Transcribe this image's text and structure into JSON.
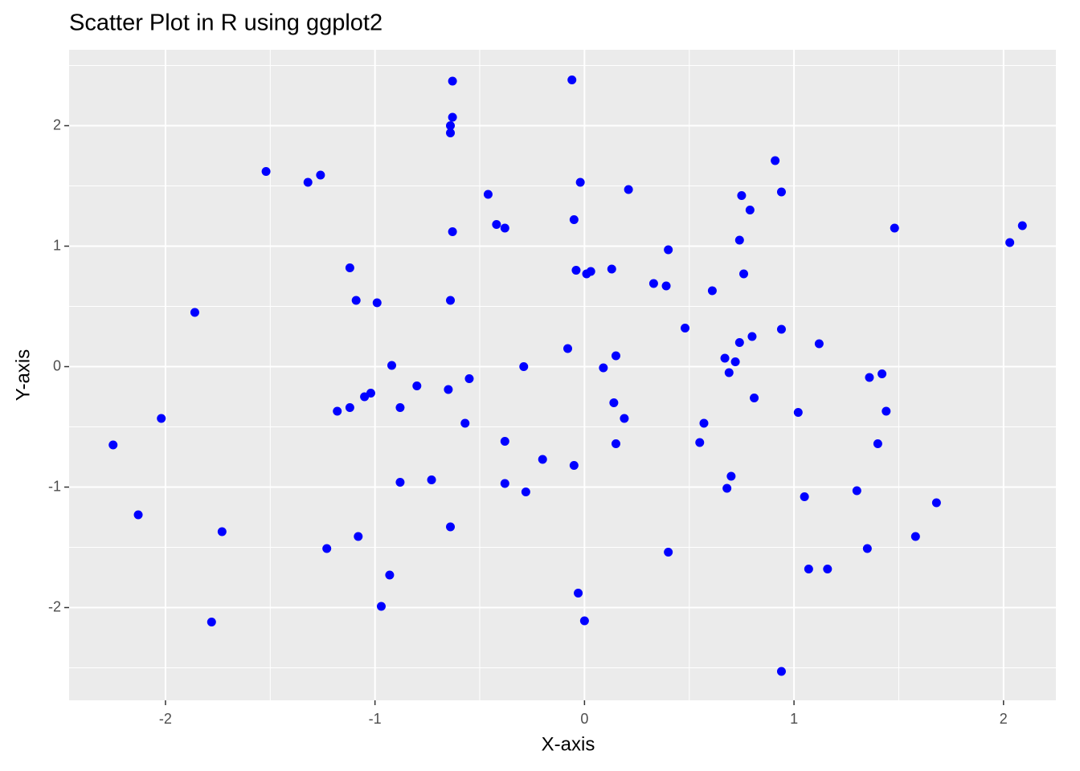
{
  "chart_data": {
    "type": "scatter",
    "title": "Scatter Plot in R using ggplot2",
    "x_label": "X-axis",
    "y_label": "Y-axis",
    "color": "#0000ff",
    "grid": true,
    "xlim": [
      -2.46,
      2.25
    ],
    "ylim": [
      -2.77,
      2.63
    ],
    "xticks": [
      -2,
      -1,
      0,
      1,
      2
    ],
    "yticks": [
      -2,
      -1,
      0,
      1,
      2
    ],
    "x": [
      -2.25,
      -2.13,
      -2.02,
      -1.86,
      -1.78,
      -1.73,
      -1.52,
      -1.32,
      -1.26,
      -1.23,
      -1.18,
      -1.12,
      -1.12,
      -1.09,
      -1.08,
      -1.05,
      -1.02,
      -0.99,
      -0.97,
      -0.93,
      -0.92,
      -0.88,
      -0.88,
      -0.8,
      -0.73,
      -0.65,
      -0.64,
      -0.64,
      -0.64,
      -0.64,
      -0.63,
      -0.63,
      -0.63,
      -0.57,
      -0.55,
      -0.46,
      -0.42,
      -0.38,
      -0.38,
      -0.38,
      -0.29,
      -0.28,
      -0.2,
      -0.08,
      -0.06,
      -0.05,
      -0.05,
      -0.04,
      -0.03,
      -0.02,
      0.0,
      0.01,
      0.03,
      0.09,
      0.13,
      0.14,
      0.15,
      0.15,
      0.19,
      0.21,
      0.33,
      0.39,
      0.4,
      0.4,
      0.48,
      0.55,
      0.57,
      0.61,
      0.67,
      0.68,
      0.69,
      0.7,
      0.72,
      0.74,
      0.74,
      0.75,
      0.76,
      0.79,
      0.8,
      0.81,
      0.91,
      0.94,
      0.94,
      0.94,
      1.02,
      1.05,
      1.07,
      1.12,
      1.16,
      1.3,
      1.35,
      1.36,
      1.4,
      1.42,
      1.44,
      1.48,
      1.58,
      1.68,
      2.03,
      2.09
    ],
    "y": [
      -0.65,
      -1.23,
      -0.43,
      0.45,
      -2.12,
      -1.37,
      1.62,
      1.53,
      1.59,
      -1.51,
      -0.37,
      0.82,
      -0.34,
      0.55,
      -1.41,
      -0.25,
      -0.22,
      0.53,
      -1.99,
      -1.73,
      0.01,
      -0.34,
      -0.96,
      -0.16,
      -0.94,
      -0.19,
      2.0,
      1.94,
      0.55,
      -1.33,
      2.07,
      2.37,
      1.12,
      -0.47,
      -0.1,
      1.43,
      1.18,
      -0.62,
      1.15,
      -0.97,
      0.0,
      -1.04,
      -0.77,
      0.15,
      2.38,
      1.22,
      -0.82,
      0.8,
      -1.88,
      1.53,
      -2.11,
      0.77,
      0.79,
      -0.01,
      0.81,
      -0.3,
      0.09,
      -0.64,
      -0.43,
      1.47,
      0.69,
      0.67,
      -1.54,
      0.97,
      0.32,
      -0.63,
      -0.47,
      0.63,
      0.07,
      -1.01,
      -0.05,
      -0.91,
      0.04,
      0.2,
      1.05,
      1.42,
      0.77,
      1.3,
      0.25,
      -0.26,
      1.71,
      1.45,
      0.31,
      -2.53,
      -0.38,
      -1.08,
      -1.68,
      0.19,
      -1.68,
      -1.03,
      -1.51,
      -0.09,
      -0.64,
      -0.06,
      -0.37,
      1.15,
      -1.41,
      -1.13,
      1.03,
      1.17
    ]
  }
}
